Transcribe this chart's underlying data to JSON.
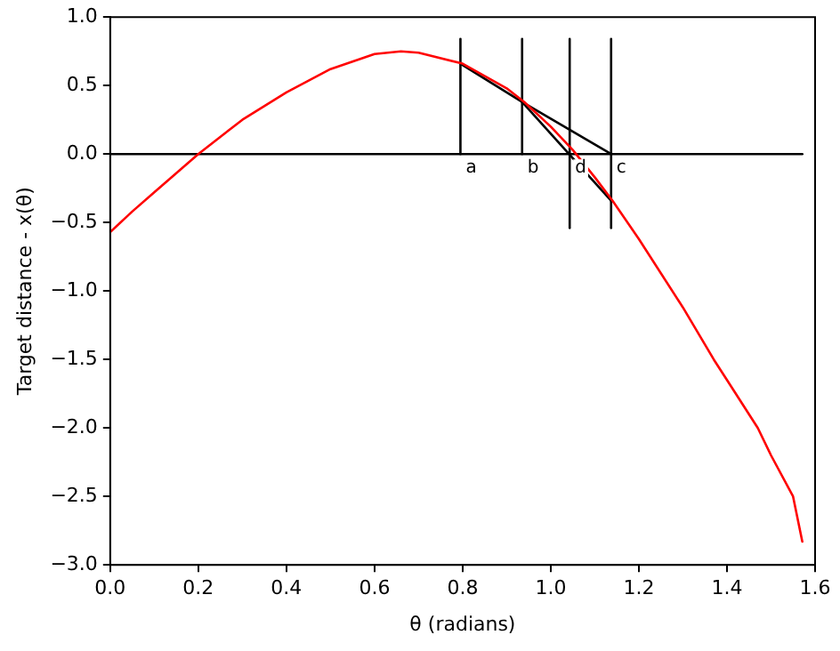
{
  "chart_data": {
    "type": "line",
    "xlabel": "θ (radians)",
    "ylabel": "Target distance - x(θ)",
    "xlim": [
      0,
      1.6
    ],
    "ylim": [
      -3,
      1
    ],
    "xticks": [
      {
        "value": 0,
        "label": "0.0"
      },
      {
        "value": 0.2,
        "label": "0.2"
      },
      {
        "value": 0.4,
        "label": "0.4"
      },
      {
        "value": 0.6,
        "label": "0.6"
      },
      {
        "value": 0.8,
        "label": "0.8"
      },
      {
        "value": 1,
        "label": "1.0"
      },
      {
        "value": 1.2,
        "label": "1.2"
      },
      {
        "value": 1.4,
        "label": "1.4"
      },
      {
        "value": 1.6,
        "label": "1.6"
      }
    ],
    "yticks": [
      {
        "value": -3,
        "label": "−3.0"
      },
      {
        "value": -2.5,
        "label": "−2.5"
      },
      {
        "value": -2,
        "label": "−2.0"
      },
      {
        "value": -1.5,
        "label": "−1.5"
      },
      {
        "value": -1,
        "label": "−1.0"
      },
      {
        "value": -0.5,
        "label": "−0.5"
      },
      {
        "value": 0,
        "label": "0.0"
      },
      {
        "value": 0.5,
        "label": "0.5"
      },
      {
        "value": 1,
        "label": "1.0"
      }
    ],
    "grid": false,
    "legend": false,
    "marker": "none",
    "line_style": "solid",
    "series": [
      {
        "color": "#ff0000",
        "x": [
          0,
          0.05,
          0.1,
          0.15,
          0.2,
          0.3,
          0.4,
          0.5,
          0.6,
          0.66,
          0.7,
          0.8,
          0.9,
          0.94,
          1.0,
          1.05,
          1.1,
          1.14,
          1.2,
          1.3,
          1.37,
          1.4,
          1.47,
          1.5,
          1.55,
          1.571
        ],
        "values": [
          -0.57,
          -0.42,
          -0.28,
          -0.14,
          0.0,
          0.25,
          0.45,
          0.62,
          0.73,
          0.75,
          0.74,
          0.66,
          0.48,
          0.38,
          0.2,
          0.03,
          -0.17,
          -0.34,
          -0.62,
          -1.12,
          -1.5,
          -1.65,
          -2.0,
          -2.2,
          -2.5,
          -2.83
        ]
      },
      {
        "color": "#000000",
        "x": [
          0,
          1.571
        ],
        "values": [
          0,
          0
        ]
      },
      {
        "color": "#000000",
        "x": [
          0.795,
          0.935,
          1.137
        ],
        "values": [
          0.66,
          0.38,
          0
        ]
      },
      {
        "color": "#000000",
        "x": [
          0.935,
          1.137
        ],
        "values": [
          0.38,
          -0.34
        ]
      },
      {
        "color": "#000000",
        "x": [
          0.795,
          0.795
        ],
        "values": [
          0,
          0.84
        ]
      },
      {
        "color": "#000000",
        "x": [
          0.935,
          0.935
        ],
        "values": [
          0,
          0.84
        ]
      },
      {
        "color": "#000000",
        "x": [
          1.043,
          1.043
        ],
        "values": [
          -0.54,
          0.84
        ]
      },
      {
        "color": "#000000",
        "x": [
          1.137,
          1.137
        ],
        "values": [
          -0.54,
          0.84
        ]
      }
    ],
    "annotations": [
      {
        "text": "a",
        "x": 0.795,
        "y": 0
      },
      {
        "text": "b",
        "x": 0.935,
        "y": 0
      },
      {
        "text": "d",
        "x": 1.043,
        "y": 0
      },
      {
        "text": "c",
        "x": 1.137,
        "y": 0
      }
    ]
  }
}
